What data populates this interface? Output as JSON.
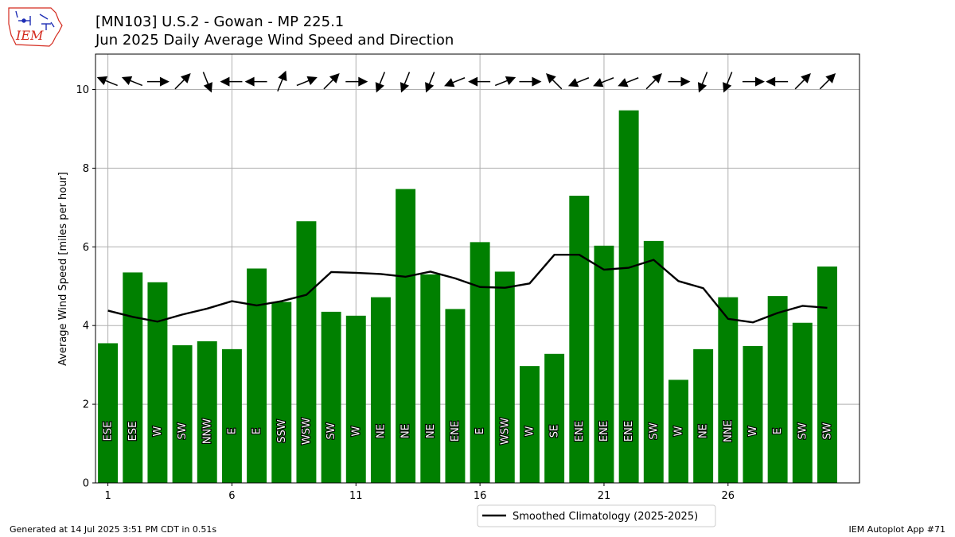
{
  "header": {
    "logo_text": "IEM",
    "title_line1": "[MN103] U.S.2 - Gowan - MP 225.1",
    "title_line2": "Jun 2025 Daily Average Wind Speed and Direction"
  },
  "footer": {
    "generated": "Generated at 14 Jul 2025 3:51 PM CDT in 0.51s",
    "app": "IEM Autoplot App #71"
  },
  "colors": {
    "bar": "#008000",
    "line": "#000000",
    "grid": "#b0b0b0",
    "logo_red": "#d42a1e",
    "logo_blue": "#1f2fb5"
  },
  "chart_data": {
    "type": "bar",
    "xlabel": "",
    "ylabel": "Average Wind Speed [miles per hour]",
    "ylim": [
      0,
      10.9
    ],
    "xlim": [
      0.5,
      31.3
    ],
    "yticks": [
      0,
      2,
      4,
      6,
      8,
      10
    ],
    "xticks": [
      1,
      6,
      11,
      16,
      21,
      26
    ],
    "grid": true,
    "legend_position": "below-center",
    "days": [
      1,
      2,
      3,
      4,
      5,
      6,
      7,
      8,
      9,
      10,
      11,
      12,
      13,
      14,
      15,
      16,
      17,
      18,
      19,
      20,
      21,
      22,
      23,
      24,
      25,
      26,
      27,
      28,
      29,
      30
    ],
    "series": [
      {
        "name": "",
        "kind": "bar",
        "values": [
          3.55,
          5.35,
          5.1,
          3.5,
          3.6,
          3.4,
          5.45,
          4.6,
          6.65,
          4.35,
          4.25,
          4.72,
          7.47,
          5.3,
          4.42,
          6.12,
          5.37,
          2.97,
          3.28,
          7.3,
          6.03,
          9.47,
          6.15,
          2.62,
          3.4,
          4.72,
          3.48,
          4.75,
          4.07,
          5.5
        ]
      },
      {
        "name": "Smoothed Climatology (2025-2025)",
        "kind": "line",
        "values": [
          4.38,
          4.22,
          4.1,
          4.28,
          4.43,
          4.62,
          4.51,
          4.62,
          4.78,
          5.36,
          5.34,
          5.31,
          5.24,
          5.37,
          5.2,
          4.98,
          4.96,
          5.07,
          5.8,
          5.8,
          5.42,
          5.47,
          5.67,
          5.13,
          4.95,
          4.17,
          4.08,
          4.32,
          4.5,
          4.45
        ]
      }
    ],
    "direction_labels": [
      "ESE",
      "ESE",
      "W",
      "SW",
      "NNW",
      "E",
      "E",
      "SSW",
      "WSW",
      "SW",
      "W",
      "NE",
      "NE",
      "NE",
      "ENE",
      "E",
      "WSW",
      "W",
      "SE",
      "ENE",
      "ENE",
      "ENE",
      "SW",
      "W",
      "NE",
      "NNE",
      "W",
      "E",
      "SW",
      "SW"
    ],
    "arrow_direction_deg": [
      292,
      292,
      90,
      45,
      158,
      270,
      270,
      22,
      68,
      45,
      90,
      202,
      202,
      202,
      248,
      270,
      68,
      90,
      315,
      248,
      248,
      248,
      45,
      90,
      202,
      202,
      90,
      270,
      45,
      45
    ],
    "arrow_y": 10.2
  }
}
